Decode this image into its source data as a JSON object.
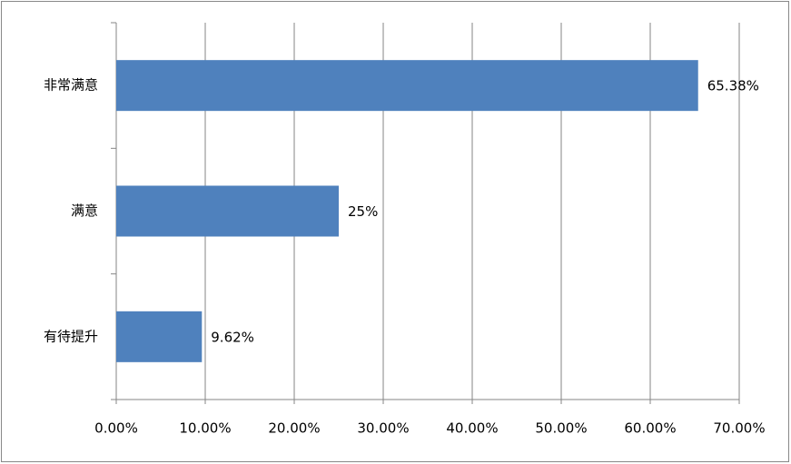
{
  "chart_data": {
    "type": "bar",
    "orientation": "horizontal",
    "categories": [
      "非常满意",
      "满意",
      "有待提升"
    ],
    "values": [
      65.38,
      25,
      9.62
    ],
    "value_labels": [
      "65.38%",
      "25%",
      "9.62%"
    ],
    "color": "#4f81bd",
    "xlim": [
      0,
      70
    ],
    "xticks": [
      {
        "value": 0,
        "label": "0.00%"
      },
      {
        "value": 10,
        "label": "10.00%"
      },
      {
        "value": 20,
        "label": "20.00%"
      },
      {
        "value": 30,
        "label": "30.00%"
      },
      {
        "value": 40,
        "label": "40.00%"
      },
      {
        "value": 50,
        "label": "50.00%"
      },
      {
        "value": 60,
        "label": "60.00%"
      },
      {
        "value": 70,
        "label": "70.00%"
      }
    ],
    "grid": true
  }
}
